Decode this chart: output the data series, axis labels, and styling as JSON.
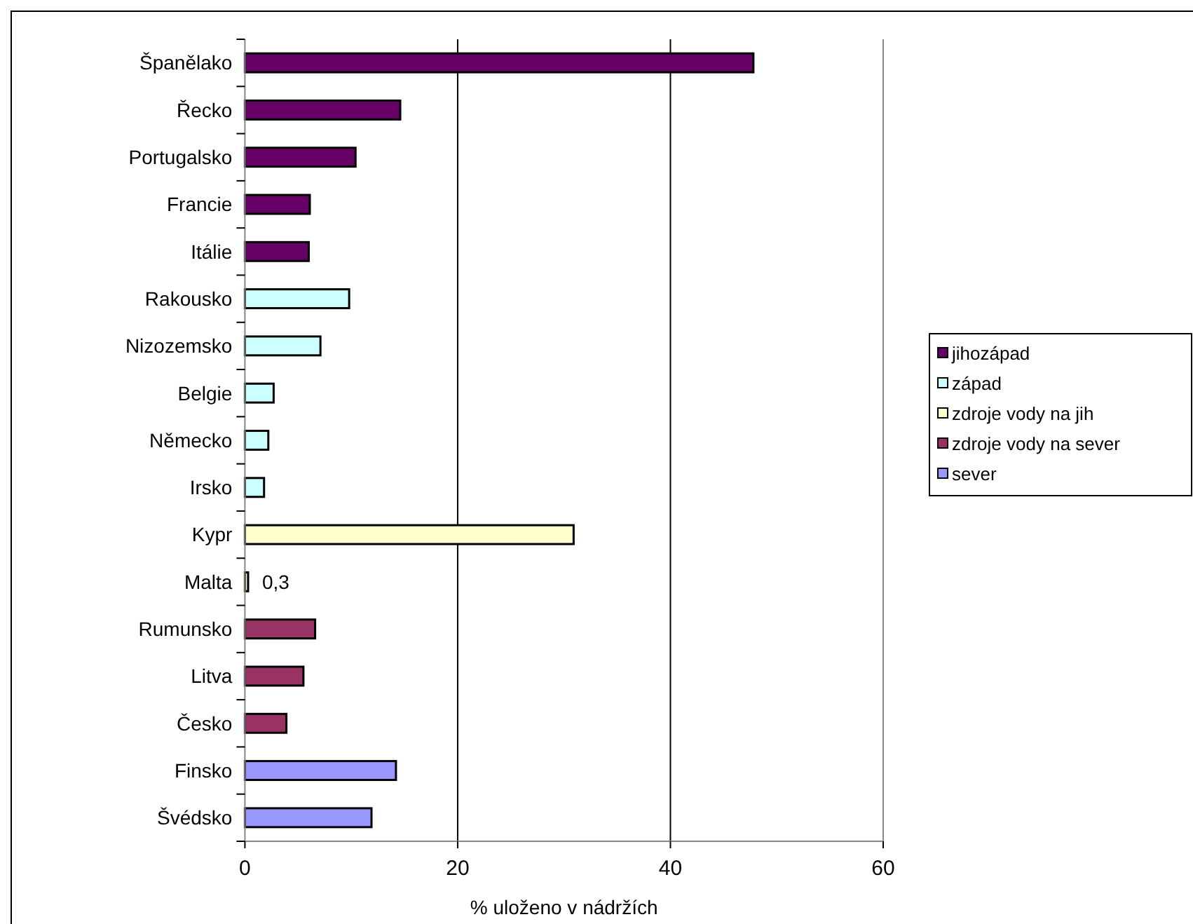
{
  "chart_data": {
    "type": "bar",
    "orientation": "horizontal",
    "xlabel": "% uloženo v nádržích",
    "categories": [
      "Španělako",
      "Řecko",
      "Portugalsko",
      "Francie",
      "Itálie",
      "Rakousko",
      "Nizozemsko",
      "Belgie",
      "Německo",
      "Irsko",
      "Kypr",
      "Malta",
      "Rumunsko",
      "Litva",
      "Česko",
      "Finsko",
      "Švédsko"
    ],
    "series": [
      {
        "name": "jihozápad",
        "color": "#660066",
        "values": [
          47.8,
          14.6,
          10.4,
          6.1,
          6.0,
          null,
          null,
          null,
          null,
          null,
          null,
          null,
          null,
          null,
          null,
          null,
          null
        ]
      },
      {
        "name": "západ",
        "color": "#ccffff",
        "values": [
          null,
          null,
          null,
          null,
          null,
          9.8,
          7.1,
          2.7,
          2.2,
          1.8,
          null,
          null,
          null,
          null,
          null,
          null,
          null
        ]
      },
      {
        "name": "zdroje vody na jih",
        "color": "#ffffcc",
        "values": [
          null,
          null,
          null,
          null,
          null,
          null,
          null,
          null,
          null,
          null,
          30.9,
          0.3,
          null,
          null,
          null,
          null,
          null
        ],
        "value_labels": [
          null,
          null,
          null,
          null,
          null,
          null,
          null,
          null,
          null,
          null,
          null,
          "0,3",
          null,
          null,
          null,
          null,
          null
        ]
      },
      {
        "name": "zdroje vody na sever",
        "color": "#993366",
        "values": [
          null,
          null,
          null,
          null,
          null,
          null,
          null,
          null,
          null,
          null,
          null,
          null,
          6.6,
          5.5,
          3.9,
          null,
          null
        ]
      },
      {
        "name": "sever",
        "color": "#9999ff",
        "values": [
          null,
          null,
          null,
          null,
          null,
          null,
          null,
          null,
          null,
          null,
          null,
          null,
          null,
          null,
          null,
          14.2,
          11.9
        ]
      }
    ],
    "xlim": [
      0,
      60
    ],
    "xticks": [
      0,
      20,
      40,
      60
    ],
    "grid": "x",
    "legend": "right"
  }
}
